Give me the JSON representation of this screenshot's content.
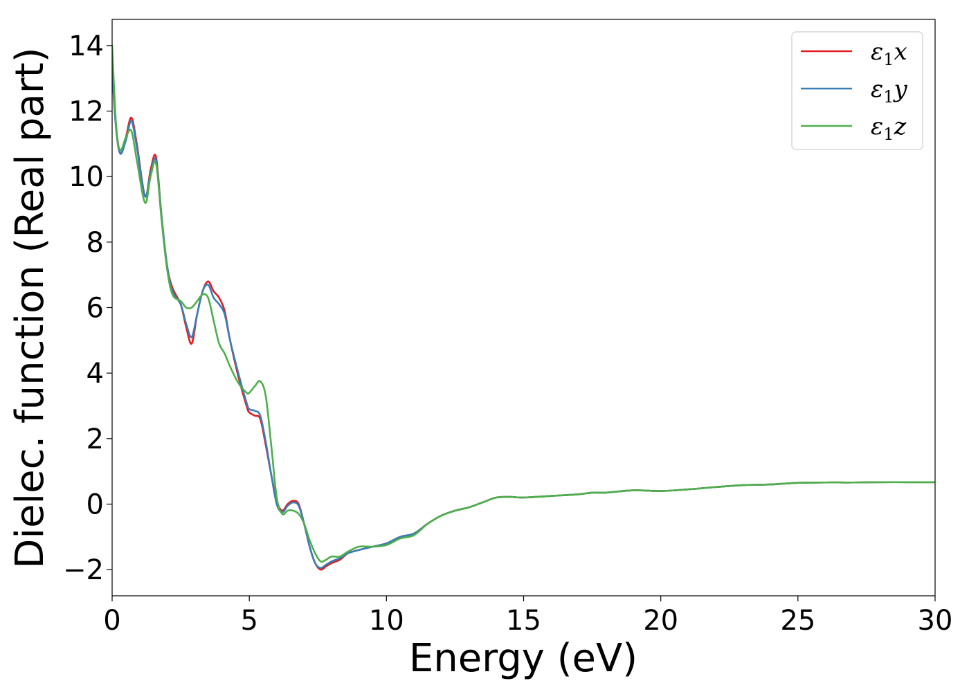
{
  "chart_data": {
    "type": "line",
    "xlabel": "Energy (eV)",
    "ylabel": "Dielec. function (Real part)",
    "xlim": [
      0,
      30
    ],
    "ylim": [
      -2.8,
      14.8
    ],
    "xticks": [
      0,
      5,
      10,
      15,
      20,
      25,
      30
    ],
    "xtick_labels": [
      "0",
      "5",
      "10",
      "15",
      "20",
      "25",
      "30"
    ],
    "yticks": [
      -2,
      0,
      2,
      4,
      6,
      8,
      10,
      12,
      14
    ],
    "ytick_labels": [
      "−2",
      "0",
      "2",
      "4",
      "6",
      "8",
      "10",
      "12",
      "14"
    ],
    "grid": false,
    "legend_position": "top-right",
    "series": [
      {
        "name": "ε1x",
        "legend_main": "ε",
        "legend_sub": "1",
        "legend_suffix": "x",
        "color": "#e41a1c",
        "x": [
          0,
          0.15,
          0.3,
          0.5,
          0.7,
          0.9,
          1.2,
          1.4,
          1.6,
          1.8,
          2.0,
          2.2,
          2.5,
          2.7,
          2.9,
          3.1,
          3.3,
          3.5,
          3.7,
          3.9,
          4.1,
          4.3,
          4.6,
          4.9,
          5.0,
          5.2,
          5.4,
          5.6,
          5.8,
          6.0,
          6.2,
          6.4,
          6.6,
          6.8,
          7.0,
          7.2,
          7.4,
          7.6,
          7.8,
          8.0,
          8.3,
          8.6,
          9.0,
          9.5,
          10.0,
          10.5,
          11.0,
          11.5,
          12.0,
          12.5,
          13.0,
          13.5,
          14.0,
          14.5,
          15.0,
          16.0,
          17.0,
          17.5,
          18.0,
          19.0,
          20.0,
          21.0,
          22.0,
          23.0,
          24.0,
          25.0,
          26.0,
          27.0,
          28.0,
          29.0,
          30.0
        ],
        "y": [
          13.3,
          11.5,
          10.7,
          11.2,
          11.8,
          11.0,
          9.4,
          10.2,
          10.6,
          8.8,
          7.3,
          6.6,
          6.1,
          5.4,
          4.9,
          5.8,
          6.5,
          6.8,
          6.5,
          6.3,
          5.9,
          5.0,
          3.9,
          3.0,
          2.8,
          2.7,
          2.6,
          1.8,
          0.9,
          0.1,
          -0.2,
          0.0,
          0.1,
          0.0,
          -0.6,
          -1.3,
          -1.8,
          -2.0,
          -1.9,
          -1.8,
          -1.7,
          -1.5,
          -1.4,
          -1.3,
          -1.2,
          -1.0,
          -0.9,
          -0.6,
          -0.35,
          -0.2,
          -0.1,
          0.05,
          0.2,
          0.22,
          0.2,
          0.25,
          0.3,
          0.35,
          0.35,
          0.42,
          0.4,
          0.45,
          0.52,
          0.58,
          0.6,
          0.65,
          0.66,
          0.66,
          0.67,
          0.67,
          0.67
        ]
      },
      {
        "name": "ε1y",
        "legend_main": "ε",
        "legend_sub": "1",
        "legend_suffix": "y",
        "color": "#377eb8",
        "x": [
          0,
          0.15,
          0.3,
          0.5,
          0.7,
          0.9,
          1.2,
          1.4,
          1.6,
          1.8,
          2.0,
          2.2,
          2.5,
          2.7,
          2.9,
          3.1,
          3.3,
          3.5,
          3.7,
          3.9,
          4.1,
          4.3,
          4.6,
          4.9,
          5.0,
          5.2,
          5.4,
          5.6,
          5.8,
          6.0,
          6.2,
          6.4,
          6.6,
          6.8,
          7.0,
          7.2,
          7.4,
          7.6,
          7.8,
          8.0,
          8.3,
          8.6,
          9.0,
          9.5,
          10.0,
          10.5,
          11.0,
          11.5,
          12.0,
          12.5,
          13.0,
          13.5,
          14.0,
          14.5,
          15.0,
          16.0,
          17.0,
          17.5,
          18.0,
          19.0,
          20.0,
          21.0,
          22.0,
          23.0,
          24.0,
          25.0,
          26.0,
          27.0,
          28.0,
          29.0,
          30.0
        ],
        "y": [
          13.2,
          11.4,
          10.7,
          11.1,
          11.7,
          10.9,
          9.4,
          10.1,
          10.5,
          8.8,
          7.3,
          6.5,
          6.1,
          5.5,
          5.1,
          5.8,
          6.5,
          6.7,
          6.3,
          6.1,
          5.8,
          5.0,
          4.0,
          3.1,
          2.9,
          2.85,
          2.7,
          1.9,
          0.9,
          0.0,
          -0.25,
          -0.05,
          0.05,
          -0.05,
          -0.6,
          -1.3,
          -1.8,
          -1.95,
          -1.85,
          -1.75,
          -1.65,
          -1.5,
          -1.4,
          -1.3,
          -1.2,
          -1.0,
          -0.9,
          -0.6,
          -0.35,
          -0.2,
          -0.1,
          0.05,
          0.2,
          0.22,
          0.2,
          0.25,
          0.3,
          0.35,
          0.35,
          0.42,
          0.4,
          0.45,
          0.52,
          0.58,
          0.6,
          0.65,
          0.66,
          0.66,
          0.67,
          0.67,
          0.67
        ]
      },
      {
        "name": "ε1z",
        "legend_main": "ε",
        "legend_sub": "1",
        "legend_suffix": "z",
        "color": "#4daf4a",
        "x": [
          0,
          0.15,
          0.3,
          0.5,
          0.7,
          0.9,
          1.2,
          1.4,
          1.6,
          1.8,
          2.0,
          2.2,
          2.5,
          2.7,
          2.9,
          3.1,
          3.3,
          3.5,
          3.7,
          3.9,
          4.1,
          4.3,
          4.6,
          4.9,
          5.0,
          5.2,
          5.4,
          5.6,
          5.8,
          6.0,
          6.2,
          6.4,
          6.6,
          6.8,
          7.0,
          7.2,
          7.4,
          7.6,
          7.8,
          8.0,
          8.3,
          8.6,
          9.0,
          9.5,
          10.0,
          10.5,
          11.0,
          11.5,
          12.0,
          12.5,
          13.0,
          13.5,
          14.0,
          14.5,
          15.0,
          16.0,
          17.0,
          17.5,
          18.0,
          19.0,
          20.0,
          21.0,
          22.0,
          23.0,
          24.0,
          25.0,
          26.0,
          27.0,
          28.0,
          29.0,
          30.0
        ],
        "y": [
          14.0,
          11.5,
          10.8,
          11.2,
          11.4,
          10.5,
          9.2,
          10.0,
          10.4,
          8.7,
          7.2,
          6.4,
          6.2,
          6.0,
          6.0,
          6.2,
          6.4,
          6.3,
          5.6,
          4.9,
          4.6,
          4.2,
          3.7,
          3.4,
          3.4,
          3.6,
          3.75,
          3.3,
          1.8,
          0.2,
          -0.3,
          -0.2,
          -0.2,
          -0.3,
          -0.6,
          -1.1,
          -1.5,
          -1.75,
          -1.7,
          -1.6,
          -1.6,
          -1.45,
          -1.3,
          -1.3,
          -1.25,
          -1.05,
          -0.95,
          -0.6,
          -0.35,
          -0.2,
          -0.1,
          0.05,
          0.2,
          0.22,
          0.2,
          0.25,
          0.3,
          0.35,
          0.35,
          0.42,
          0.4,
          0.45,
          0.52,
          0.58,
          0.6,
          0.65,
          0.66,
          0.66,
          0.67,
          0.67,
          0.67
        ]
      }
    ]
  }
}
